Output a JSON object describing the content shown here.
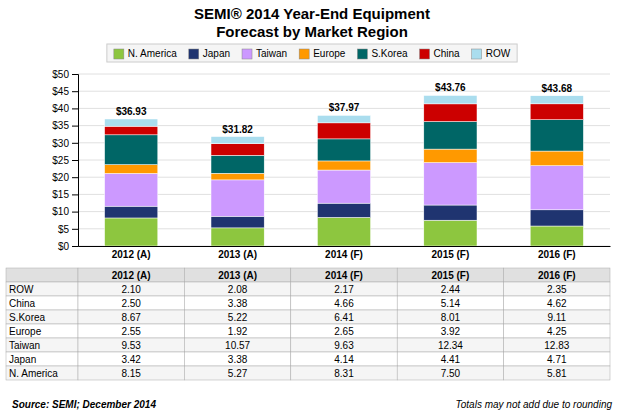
{
  "chart_data": {
    "type": "bar",
    "stacked": true,
    "title": "SEMI® 2014 Year-End Equipment",
    "subtitle": "Forecast by Market Region",
    "categories": [
      "2012 (A)",
      "2013 (A)",
      "2014 (F)",
      "2015 (F)",
      "2016 (F)"
    ],
    "series": [
      {
        "name": "N. America",
        "color": "#8dc63f",
        "values": [
          8.15,
          5.27,
          8.31,
          7.5,
          5.81
        ]
      },
      {
        "name": "Japan",
        "color": "#1f3470",
        "values": [
          3.42,
          3.38,
          4.14,
          4.41,
          4.71
        ]
      },
      {
        "name": "Taiwan",
        "color": "#cc99ff",
        "values": [
          9.53,
          10.57,
          9.63,
          12.34,
          12.83
        ]
      },
      {
        "name": "Europe",
        "color": "#ff9900",
        "values": [
          2.55,
          1.92,
          2.65,
          3.92,
          4.25
        ]
      },
      {
        "name": "S.Korea",
        "color": "#006666",
        "values": [
          8.67,
          5.22,
          6.41,
          8.01,
          9.11
        ]
      },
      {
        "name": "China",
        "color": "#cc0000",
        "values": [
          2.5,
          3.38,
          4.66,
          5.14,
          4.62
        ]
      },
      {
        "name": "ROW",
        "color": "#aaddee",
        "values": [
          2.1,
          2.08,
          2.17,
          2.44,
          2.35
        ]
      }
    ],
    "ylim": [
      0,
      50
    ],
    "yticks": [
      {
        "value": 0,
        "label": "$0"
      },
      {
        "value": 5,
        "label": "$5"
      },
      {
        "value": 10,
        "label": "$10"
      },
      {
        "value": 15,
        "label": "$15"
      },
      {
        "value": 20,
        "label": "$20"
      },
      {
        "value": 25,
        "label": "$25"
      },
      {
        "value": 30,
        "label": "$30"
      },
      {
        "value": 35,
        "label": "$35"
      },
      {
        "value": 40,
        "label": "$40"
      },
      {
        "value": 45,
        "label": "$45"
      },
      {
        "value": 50,
        "label": "$50"
      }
    ],
    "grid": true,
    "legend": "top",
    "totals": [
      36.93,
      31.82,
      37.97,
      43.76,
      43.68
    ],
    "total_labels": [
      "$36.93",
      "$31.82",
      "$37.97",
      "$43.76",
      "$43.68"
    ],
    "table": {
      "rows": [
        {
          "name": "ROW",
          "values": [
            2.1,
            2.08,
            2.17,
            2.44,
            2.35
          ],
          "value_labels": [
            "2.10",
            "2.08",
            "2.17",
            "2.44",
            "2.35"
          ]
        },
        {
          "name": "China",
          "values": [
            2.5,
            3.38,
            4.66,
            5.14,
            4.62
          ],
          "value_labels": [
            "2.50",
            "3.38",
            "4.66",
            "5.14",
            "4.62"
          ]
        },
        {
          "name": "S.Korea",
          "values": [
            8.67,
            5.22,
            6.41,
            8.01,
            9.11
          ],
          "value_labels": [
            "8.67",
            "5.22",
            "6.41",
            "8.01",
            "9.11"
          ]
        },
        {
          "name": "Europe",
          "values": [
            2.55,
            1.92,
            2.65,
            3.92,
            4.25
          ],
          "value_labels": [
            "2.55",
            "1.92",
            "2.65",
            "3.92",
            "4.25"
          ]
        },
        {
          "name": "Taiwan",
          "values": [
            9.53,
            10.57,
            9.63,
            12.34,
            12.83
          ],
          "value_labels": [
            "9.53",
            "10.57",
            "9.63",
            "12.34",
            "12.83"
          ]
        },
        {
          "name": "Japan",
          "values": [
            3.42,
            3.38,
            4.14,
            4.41,
            4.71
          ],
          "value_labels": [
            "3.42",
            "3.38",
            "4.14",
            "4.41",
            "4.71"
          ]
        },
        {
          "name": "N. America",
          "values": [
            8.15,
            5.27,
            8.31,
            7.5,
            5.81
          ],
          "value_labels": [
            "8.15",
            "5.27",
            "8.31",
            "7.50",
            "5.81"
          ]
        }
      ]
    },
    "annotations": [
      "Source: SEMI; December 2014",
      "Totals may not add due to rounding"
    ]
  }
}
